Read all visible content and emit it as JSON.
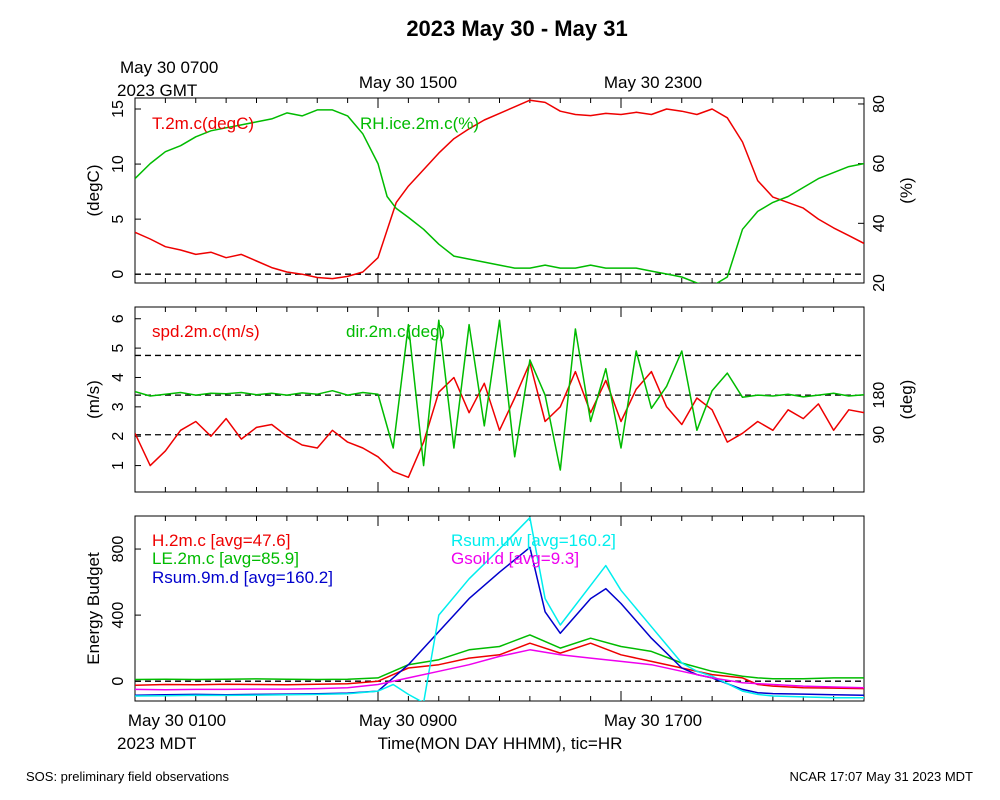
{
  "title": "2023 May 30 - May 31",
  "top_time_labels": {
    "gmt_line1": "May 30 0700",
    "gmt_line2": "2023 GMT",
    "mid": "May 30 1500",
    "right": "May 30 2300"
  },
  "bottom_time_labels": {
    "left_line1": "May 30 0100",
    "left_line2": "2023 MDT",
    "mid": "May 30 0900",
    "right": "May 30 1700"
  },
  "xlabel": "Time(MON DAY HHMM), tic=HR",
  "footer": {
    "left": "SOS: preliminary field observations",
    "right": "NCAR 17:07 May 31 2023 MDT"
  },
  "colors": {
    "red": "#ee0000",
    "green": "#00bb00",
    "blue": "#0000cc",
    "cyan": "#00eeee",
    "magenta": "#ee00ee"
  },
  "chart_data": [
    {
      "type": "line",
      "x_unit": "hours since May 30 0000 MDT",
      "xlim": [
        0,
        24
      ],
      "ylabel": "(degC)",
      "ylim": [
        -0.8,
        16
      ],
      "yticks": [
        0,
        5,
        10,
        15
      ],
      "ylabel_right": "(%)",
      "ylim_right": [
        20,
        82
      ],
      "yticks_right": [
        20,
        40,
        60,
        80
      ],
      "reference_lines": [
        0
      ],
      "series": [
        {
          "name": "T.2m.c(degC)",
          "axis": "left",
          "color": "red",
          "x": [
            0,
            0.5,
            1,
            1.5,
            2,
            2.5,
            3,
            3.5,
            4,
            4.5,
            5,
            5.5,
            6,
            6.5,
            7,
            7.5,
            8,
            8.3,
            8.6,
            9,
            9.5,
            10,
            10.5,
            11,
            11.5,
            12,
            12.5,
            13,
            13.5,
            14,
            14.5,
            15,
            15.5,
            16,
            16.5,
            17,
            17.5,
            18,
            18.5,
            19,
            19.5,
            20,
            20.5,
            21,
            21.5,
            22,
            22.5,
            23,
            23.5,
            24
          ],
          "values": [
            3.8,
            3.2,
            2.5,
            2.2,
            1.8,
            2.0,
            1.5,
            1.8,
            1.2,
            0.6,
            0.2,
            0.0,
            -0.3,
            -0.4,
            -0.2,
            0.2,
            1.5,
            4.0,
            6.5,
            8.0,
            9.5,
            11.0,
            12.3,
            13.2,
            14.0,
            14.6,
            15.2,
            15.8,
            15.6,
            14.8,
            14.5,
            14.4,
            14.6,
            14.5,
            14.7,
            14.5,
            15.0,
            14.8,
            14.5,
            15.0,
            14.2,
            12.0,
            8.5,
            7.0,
            6.5,
            6.0,
            5.0,
            4.2,
            3.5,
            2.8
          ]
        },
        {
          "name": "RH.ice.2m.c(%)",
          "axis": "right",
          "color": "green",
          "x": [
            0,
            0.5,
            1,
            1.5,
            2,
            2.5,
            3,
            3.5,
            4,
            4.5,
            5,
            5.5,
            6,
            6.5,
            7,
            7.5,
            8,
            8.3,
            8.6,
            9,
            9.5,
            10,
            10.5,
            11,
            11.5,
            12,
            12.5,
            13,
            13.5,
            14,
            14.5,
            15,
            15.5,
            16,
            16.5,
            17,
            17.5,
            18,
            18.5,
            19,
            19.5,
            20,
            20.5,
            21,
            21.5,
            22,
            22.5,
            23,
            23.5,
            24
          ],
          "values": [
            55,
            60,
            64,
            66,
            69,
            71,
            72,
            73,
            74,
            75,
            77,
            76,
            78,
            78,
            76,
            70,
            60,
            49,
            45,
            42,
            38,
            33,
            29,
            28,
            27,
            26,
            25,
            25,
            26,
            25,
            25,
            26,
            25,
            25,
            25,
            24,
            23,
            22,
            20,
            19,
            22,
            38,
            44,
            47,
            49,
            52,
            55,
            57,
            59,
            60
          ]
        }
      ]
    },
    {
      "type": "line",
      "x_unit": "hours since May 30 0000 MDT",
      "xlim": [
        0,
        24
      ],
      "ylabel": "(m/s)",
      "ylim": [
        0.1,
        6.4
      ],
      "yticks": [
        1,
        2,
        3,
        4,
        5,
        6
      ],
      "ylabel_right": "(deg)",
      "ylim_right": [
        -40,
        380
      ],
      "yticks_right": [
        90,
        180
      ],
      "reference_lines_right": [
        90,
        180,
        270
      ],
      "series": [
        {
          "name": "spd.2m.c(m/s)",
          "axis": "left",
          "color": "red",
          "x": [
            0,
            0.5,
            1,
            1.5,
            2,
            2.5,
            3,
            3.5,
            4,
            4.5,
            5,
            5.5,
            6,
            6.5,
            7,
            7.5,
            8,
            8.5,
            9,
            9.5,
            10,
            10.5,
            11,
            11.5,
            12,
            12.5,
            13,
            13.5,
            14,
            14.5,
            15,
            15.5,
            16,
            16.5,
            17,
            17.5,
            18,
            18.5,
            19,
            19.5,
            20,
            20.5,
            21,
            21.5,
            22,
            22.5,
            23,
            23.5,
            24
          ],
          "values": [
            2.1,
            1.0,
            1.5,
            2.2,
            2.5,
            2.0,
            2.6,
            1.9,
            2.3,
            2.4,
            2.0,
            1.7,
            1.6,
            2.2,
            1.8,
            1.6,
            1.3,
            0.8,
            0.6,
            1.8,
            3.5,
            4.0,
            2.8,
            3.8,
            2.2,
            3.3,
            4.5,
            2.5,
            3.0,
            4.2,
            2.8,
            3.9,
            2.5,
            3.6,
            4.2,
            3.0,
            2.4,
            3.3,
            2.9,
            1.8,
            2.1,
            2.5,
            2.2,
            2.9,
            2.6,
            3.1,
            2.2,
            2.9,
            2.8
          ]
        },
        {
          "name": "dir.2m.c(deg)",
          "axis": "right",
          "color": "green",
          "x": [
            0,
            0.5,
            1,
            1.5,
            2,
            2.5,
            3,
            3.5,
            4,
            4.5,
            5,
            5.5,
            6,
            6.5,
            7,
            7.5,
            8,
            8.5,
            9,
            9.5,
            10,
            10.5,
            11,
            11.5,
            12,
            12.5,
            13,
            13.5,
            14,
            14.5,
            15,
            15.5,
            16,
            16.5,
            17,
            17.5,
            18,
            18.5,
            19,
            19.5,
            20,
            20.5,
            21,
            21.5,
            22,
            22.5,
            23,
            23.5,
            24
          ],
          "values": [
            188,
            178,
            182,
            186,
            180,
            184,
            183,
            186,
            181,
            184,
            180,
            185,
            182,
            190,
            180,
            186,
            182,
            60,
            340,
            20,
            350,
            60,
            340,
            110,
            350,
            40,
            260,
            180,
            10,
            330,
            120,
            240,
            60,
            280,
            150,
            200,
            280,
            100,
            190,
            230,
            175,
            180,
            178,
            182,
            176,
            180,
            184,
            178,
            181
          ]
        }
      ]
    },
    {
      "type": "line",
      "x_unit": "hours since May 30 0000 MDT",
      "xlim": [
        0,
        24
      ],
      "ylabel": "Energy Budget",
      "ylim": [
        -120,
        1000
      ],
      "yticks": [
        0,
        400,
        800
      ],
      "reference_lines": [
        0
      ],
      "series": [
        {
          "name": "H.2m.c [avg=47.6]",
          "color": "red",
          "x": [
            0,
            1,
            2,
            3,
            4,
            5,
            6,
            7,
            8,
            8.5,
            9,
            10,
            11,
            12,
            13,
            14,
            15,
            16,
            17,
            18,
            19,
            20,
            20.5,
            21,
            22,
            23,
            24
          ],
          "values": [
            -25,
            -20,
            -22,
            -18,
            -20,
            -22,
            -18,
            -15,
            0,
            40,
            80,
            100,
            140,
            160,
            230,
            170,
            230,
            160,
            120,
            80,
            40,
            20,
            -20,
            -30,
            -40,
            -42,
            -45
          ]
        },
        {
          "name": "LE.2m.c [avg=85.9]",
          "color": "green",
          "x": [
            0,
            1,
            2,
            3,
            4,
            5,
            6,
            7,
            8,
            8.5,
            9,
            10,
            11,
            12,
            13,
            14,
            15,
            16,
            17,
            18,
            19,
            20,
            20.5,
            21,
            22,
            23,
            24
          ],
          "values": [
            10,
            12,
            10,
            12,
            14,
            12,
            10,
            12,
            20,
            60,
            100,
            130,
            190,
            210,
            280,
            200,
            260,
            210,
            180,
            110,
            60,
            30,
            20,
            15,
            15,
            20,
            20
          ]
        },
        {
          "name": "Rsum.9m.d [avg=160.2]",
          "color": "blue",
          "x": [
            0,
            1,
            2,
            3,
            4,
            5,
            6,
            7,
            8,
            9,
            10,
            11,
            12,
            13,
            13.5,
            14,
            15,
            15.5,
            16,
            17,
            18,
            18.5,
            19,
            20,
            20.5,
            21,
            22,
            23,
            24
          ],
          "values": [
            -85,
            -82,
            -80,
            -82,
            -80,
            -78,
            -76,
            -72,
            -60,
            100,
            300,
            500,
            660,
            810,
            420,
            290,
            500,
            560,
            470,
            260,
            80,
            40,
            20,
            -50,
            -70,
            -75,
            -78,
            -82,
            -85
          ]
        },
        {
          "name": "Rsum.uw [avg=160.2]",
          "color": "cyan",
          "x": [
            0,
            1,
            2,
            3,
            4,
            5,
            6,
            7,
            8,
            8.5,
            9,
            9.5,
            10,
            11,
            12,
            13,
            13.5,
            14,
            15,
            15.5,
            16,
            17,
            18,
            18.5,
            19,
            20,
            20.5,
            21,
            22,
            23,
            24
          ],
          "values": [
            -90,
            -88,
            -85,
            -86,
            -84,
            -82,
            -80,
            -76,
            -60,
            -20,
            -80,
            -130,
            400,
            620,
            800,
            990,
            500,
            340,
            580,
            700,
            550,
            330,
            110,
            60,
            30,
            -60,
            -80,
            -90,
            -95,
            -100,
            -100
          ]
        },
        {
          "name": "Gsoil.d [avg=9.3]",
          "color": "magenta",
          "x": [
            0,
            1,
            2,
            3,
            4,
            5,
            6,
            7,
            8,
            9,
            10,
            11,
            12,
            13,
            14,
            15,
            16,
            17,
            18,
            19,
            20,
            21,
            22,
            23,
            24
          ],
          "values": [
            -50,
            -52,
            -50,
            -50,
            -48,
            -48,
            -45,
            -40,
            -20,
            20,
            60,
            100,
            150,
            190,
            160,
            140,
            120,
            100,
            60,
            20,
            -10,
            -20,
            -30,
            -35,
            -40
          ]
        }
      ]
    }
  ]
}
